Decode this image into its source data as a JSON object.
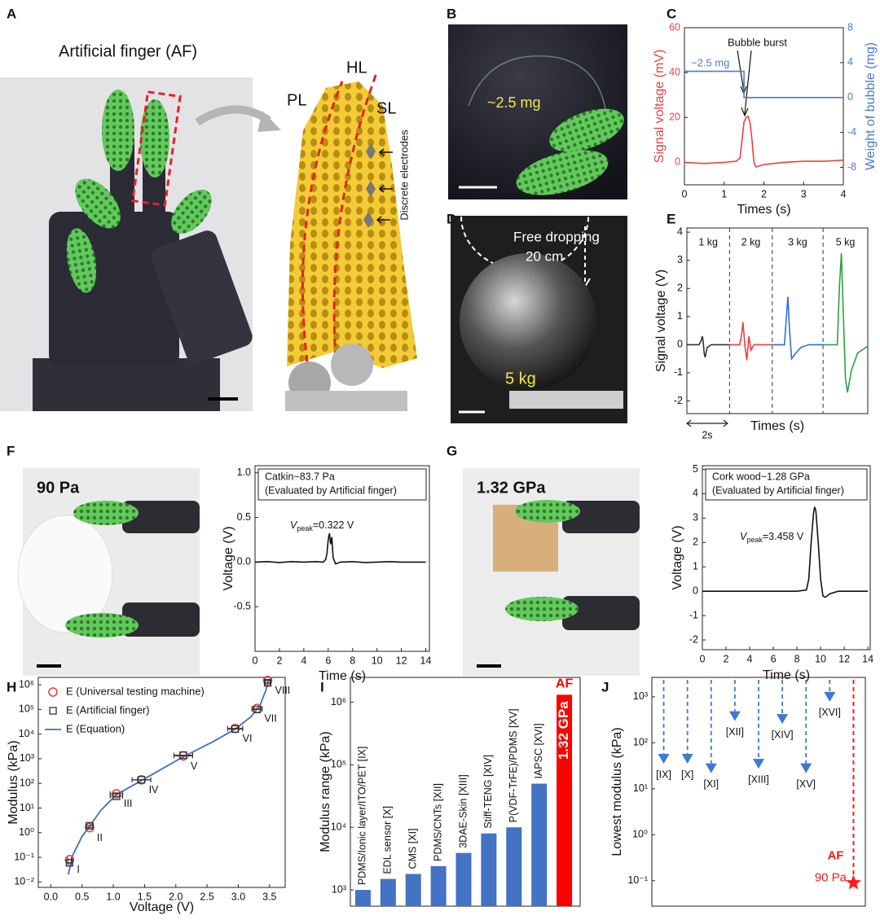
{
  "photos": [
    {
      "label": "A",
      "title": "Artificial finger (AF)",
      "layers": [
        "PL",
        "HL",
        "SL"
      ],
      "electrodes": "Discrete electrodes"
    },
    {
      "label": "B",
      "mass": "~2.5 mg"
    },
    {
      "label": "D",
      "drop": "Free dropping",
      "height": "20 cm",
      "load": "5 kg"
    },
    {
      "label": "F",
      "pressure": "90 Pa"
    },
    {
      "label": "G",
      "pressure": "1.32 GPa"
    }
  ],
  "chart_data": [
    {
      "panel": "C",
      "type": "line",
      "xlabel": "Times (s)",
      "ylabel": "Signal voltage (mV)",
      "y2label": "Weight of bubble (mg)",
      "xlim": [
        0,
        4
      ],
      "xticks": [
        0,
        1,
        2,
        3,
        4
      ],
      "ylim": [
        -10,
        60
      ],
      "yticks": [
        0,
        20,
        40,
        60
      ],
      "y2lim": [
        -10,
        8
      ],
      "y2ticks": [
        -8,
        -4,
        0,
        4,
        8
      ],
      "y_color": "#e8423f",
      "y2_color": "#4a7cc9",
      "annotations": [
        "Bubble burst",
        "~2.5 mg"
      ],
      "series": [
        {
          "color": "#e8423f",
          "x": [
            0,
            0.5,
            1.0,
            1.3,
            1.4,
            1.45,
            1.5,
            1.55,
            1.6,
            1.65,
            1.7,
            1.75,
            1.8,
            1.9,
            2.0,
            2.5,
            3.0,
            3.5,
            4.0
          ],
          "values": [
            0,
            -0.5,
            0,
            0.5,
            2,
            10,
            18,
            20,
            20.5,
            18,
            10,
            0,
            -2,
            -1.5,
            -1,
            0,
            0.5,
            0.5,
            1
          ]
        },
        {
          "color": "#4a7cc9",
          "axis": "y2",
          "x": [
            0,
            1.5,
            1.5,
            4
          ],
          "values": [
            3,
            3,
            0,
            0
          ]
        }
      ]
    },
    {
      "panel": "E",
      "type": "line",
      "xlabel": "Times (s)",
      "ylabel": "Signal voltage (V)",
      "xlim": [
        0,
        8.9
      ],
      "ylim": [
        -2.45,
        4.15
      ],
      "yticks": [
        -2,
        -1,
        0,
        1,
        2,
        3,
        4
      ],
      "dividers": [
        2.1,
        4.2,
        6.7
      ],
      "section_labels": [
        "1 kg",
        "2 kg",
        "3 kg",
        "5 kg"
      ],
      "scale_bar": {
        "length": 2,
        "label": "2s"
      },
      "series": [
        {
          "color": "#333333",
          "x": [
            0,
            0.6,
            0.7,
            0.76,
            0.8,
            0.85,
            0.9,
            1.0,
            1.2,
            2.1
          ],
          "values": [
            0,
            0,
            0.15,
            0.3,
            0.1,
            -0.3,
            -0.45,
            -0.1,
            0,
            0
          ]
        },
        {
          "color": "#e8423f",
          "x": [
            2.1,
            2.6,
            2.7,
            2.76,
            2.85,
            2.95,
            3.05,
            3.15,
            3.3,
            3.5,
            4.2
          ],
          "values": [
            0,
            0,
            0.4,
            0.8,
            0,
            -0.55,
            0.3,
            -0.2,
            0,
            0,
            0
          ]
        },
        {
          "color": "#2f6fd6",
          "x": [
            4.2,
            4.8,
            4.9,
            4.97,
            5.05,
            5.15,
            5.3,
            5.6,
            6.0,
            6.7
          ],
          "values": [
            0,
            0,
            1.0,
            1.7,
            0.5,
            -0.5,
            -0.35,
            -0.1,
            0,
            0
          ]
        },
        {
          "color": "#2ea043",
          "x": [
            6.7,
            7.4,
            7.5,
            7.6,
            7.7,
            7.8,
            7.9,
            8.1,
            8.4,
            8.9
          ],
          "values": [
            0,
            0,
            2.0,
            3.25,
            1.0,
            -1.2,
            -1.7,
            -0.9,
            -0.3,
            -0.05
          ]
        }
      ]
    },
    {
      "type": "line",
      "xlabel": "Time (s)",
      "ylabel": "Voltage (V)",
      "xlim": [
        0,
        14.3
      ],
      "xticks": [
        0,
        2,
        4,
        6,
        8,
        10,
        12,
        14
      ],
      "ylim": [
        -1,
        1.08
      ],
      "yticks": [
        -0.5,
        {
          "value": 0,
          "label": "0.0"
        },
        0.5,
        {
          "value": 1,
          "label": "1.0"
        }
      ],
      "note": [
        "Catkin~83.7 Pa",
        "(Evaluated by Artificial finger)"
      ],
      "peak_label": {
        "symbol": "V",
        "subscript": "peak",
        "text": "=0.322 V"
      },
      "series": [
        {
          "color": "#111111",
          "x": [
            0,
            1,
            2,
            3,
            4,
            5,
            5.6,
            5.8,
            5.9,
            6.0,
            6.1,
            6.2,
            6.3,
            6.4,
            6.6,
            7,
            8,
            9,
            10,
            11,
            12,
            13,
            14
          ],
          "values": [
            0,
            0.005,
            -0.005,
            0.005,
            0,
            0.005,
            0,
            0.03,
            0.1,
            0.25,
            0.322,
            0.2,
            0.28,
            0.05,
            -0.02,
            0,
            0.005,
            -0.005,
            0,
            0.005,
            0,
            0,
            0
          ]
        }
      ]
    },
    {
      "type": "line",
      "xlabel": "Time (s)",
      "ylabel": "Voltage (V)",
      "xlim": [
        0,
        14.2
      ],
      "xticks": [
        0,
        2,
        4,
        6,
        8,
        10,
        12,
        14
      ],
      "ylim": [
        -2.4,
        5.15
      ],
      "yticks": [
        -2,
        -1,
        0,
        1,
        2,
        3,
        4,
        5
      ],
      "note": [
        "Cork wood~1.28 GPa",
        "(Evaluated by Artificial finger)"
      ],
      "peak_label": {
        "symbol": "V",
        "subscript": "peak",
        "text": "=3.458 V"
      },
      "series": [
        {
          "color": "#111111",
          "x": [
            0,
            2,
            4,
            6,
            8,
            8.8,
            9.0,
            9.2,
            9.4,
            9.5,
            9.6,
            9.8,
            10.0,
            10.2,
            10.4,
            10.8,
            11.5,
            14
          ],
          "values": [
            0,
            0,
            0,
            0,
            0,
            0.05,
            0.5,
            2.0,
            3.2,
            3.458,
            3.3,
            2.0,
            0.5,
            -0.2,
            -0.25,
            -0.1,
            0,
            0
          ]
        }
      ]
    },
    {
      "panel": "H",
      "type": "scatter",
      "xlabel": "Voltage (V)",
      "ylabel": "Modulus (kPa)",
      "log_y": true,
      "xlim": [
        -0.2,
        3.75
      ],
      "xticks": [
        {
          "value": 0,
          "label": "0.0"
        },
        0.5,
        {
          "value": 1,
          "label": "1.0"
        },
        1.5,
        {
          "value": 2,
          "label": "2.0"
        },
        2.5,
        {
          "value": 3,
          "label": "3.0"
        },
        3.5
      ],
      "ylim": [
        0.006,
        2000000
      ],
      "yticks": [
        {
          "value": 0.01,
          "label": "10⁻²"
        },
        {
          "value": 0.1,
          "label": "10⁻¹"
        },
        {
          "value": 1,
          "label": "10⁰"
        },
        {
          "value": 10,
          "label": "10¹"
        },
        {
          "value": 100,
          "label": "10²"
        },
        {
          "value": 1000,
          "label": "10³"
        },
        {
          "value": 10000,
          "label": "10⁴"
        },
        {
          "value": 100000,
          "label": "10⁵"
        },
        {
          "value": 1000000,
          "label": "10⁶"
        }
      ],
      "legend": "upper left",
      "point_labels": [
        "I",
        "II",
        "III",
        "IV",
        "V",
        "VI",
        "VII",
        "VIII"
      ],
      "series": [
        {
          "name": "E (Universal testing machine)",
          "marker": "circle",
          "color": "#e8423f",
          "x": [
            0.3,
            0.62,
            1.05,
            1.45,
            2.12,
            2.95,
            3.3,
            3.47
          ],
          "xerr": [
            0.03,
            0.06,
            0.1,
            0.15,
            0.15,
            0.12,
            0.08,
            0.04
          ],
          "values": [
            0.08,
            1.6,
            38,
            140,
            1300,
            17000,
            110000,
            1500000
          ]
        },
        {
          "name": "E (Artificial finger)",
          "marker": "square",
          "color": "#333333",
          "x": [
            0.3,
            0.62,
            1.05,
            1.45,
            2.12,
            2.95,
            3.3,
            3.47
          ],
          "xerr": [
            0.03,
            0.06,
            0.1,
            0.15,
            0.15,
            0.12,
            0.08,
            0.04
          ],
          "values": [
            0.06,
            1.9,
            30,
            140,
            1400,
            16000,
            100000,
            1200000
          ]
        },
        {
          "name": "E (Equation)",
          "marker": "line",
          "color": "#3a6fc4",
          "x": [
            0.28,
            0.35,
            0.5,
            0.62,
            0.8,
            1.05,
            1.45,
            2.12,
            2.6,
            2.95,
            3.2,
            3.35,
            3.45,
            3.48
          ],
          "values": [
            0.02,
            0.12,
            0.7,
            1.8,
            8,
            35,
            130,
            1200,
            5000,
            16000,
            50000,
            150000,
            700000,
            1600000
          ]
        }
      ]
    },
    {
      "panel": "I",
      "type": "bar",
      "ylabel": "Modulus range (kPa)",
      "log_y": true,
      "ylim": [
        550,
        2500000
      ],
      "yticks": [
        {
          "value": 1000,
          "label": "10³"
        },
        {
          "value": 10000,
          "label": "10⁴"
        },
        {
          "value": 100000,
          "label": "10⁵"
        },
        {
          "value": 1000000,
          "label": "10⁶"
        }
      ],
      "categories": [
        "PDMS/Ionic layer/ITO/PET [IX]",
        "EDL sensor [X]",
        "CMS [XI]",
        "PDMS/CNTs [XII]",
        "3DAE-Skin [XIII]",
        "Stiff-TENG [XIV]",
        "P(VDF-TrFE)/PDMS [XV]",
        "IAPSC [XVI]",
        "AF"
      ],
      "values": [
        1000,
        1500,
        1800,
        2400,
        3900,
        8000,
        10000,
        50000,
        1320000
      ],
      "value_labels": [
        null,
        null,
        null,
        null,
        null,
        null,
        null,
        null,
        "1.32 GPa"
      ],
      "colors": [
        "#4472c4",
        "#4472c4",
        "#4472c4",
        "#4472c4",
        "#4472c4",
        "#4472c4",
        "#4472c4",
        "#4472c4",
        "#ff0000"
      ]
    },
    {
      "panel": "J",
      "type": "pin",
      "ylabel": "Lowest modulus (kPa)",
      "log_y": true,
      "ylim": [
        0.028,
        2650
      ],
      "yticks": [
        {
          "value": 0.1,
          "label": "10⁻¹"
        },
        {
          "value": 1,
          "label": "10⁰"
        },
        {
          "value": 10,
          "label": "10¹"
        },
        {
          "value": 100,
          "label": "10²"
        },
        {
          "value": 1000,
          "label": "10³"
        }
      ],
      "categories": [
        "[IX]",
        "[X]",
        "[XI]",
        "[XII]",
        "[XIII]",
        "[XIV]",
        "[XV]",
        "[XVI]",
        "AF"
      ],
      "values": [
        45,
        45,
        28,
        380,
        35,
        330,
        28,
        1000,
        0.09
      ],
      "value_labels": [
        null,
        null,
        null,
        null,
        null,
        null,
        null,
        null,
        "90 Pa"
      ],
      "markers": [
        "triangle",
        "triangle",
        "triangle",
        "triangle",
        "triangle",
        "triangle",
        "triangle",
        "triangle",
        "star"
      ],
      "colors": [
        "#3f78d6",
        "#3f78d6",
        "#3f78d6",
        "#3f78d6",
        "#3f78d6",
        "#3f78d6",
        "#3f78d6",
        "#3f78d6",
        "#ff1a1a"
      ]
    }
  ]
}
